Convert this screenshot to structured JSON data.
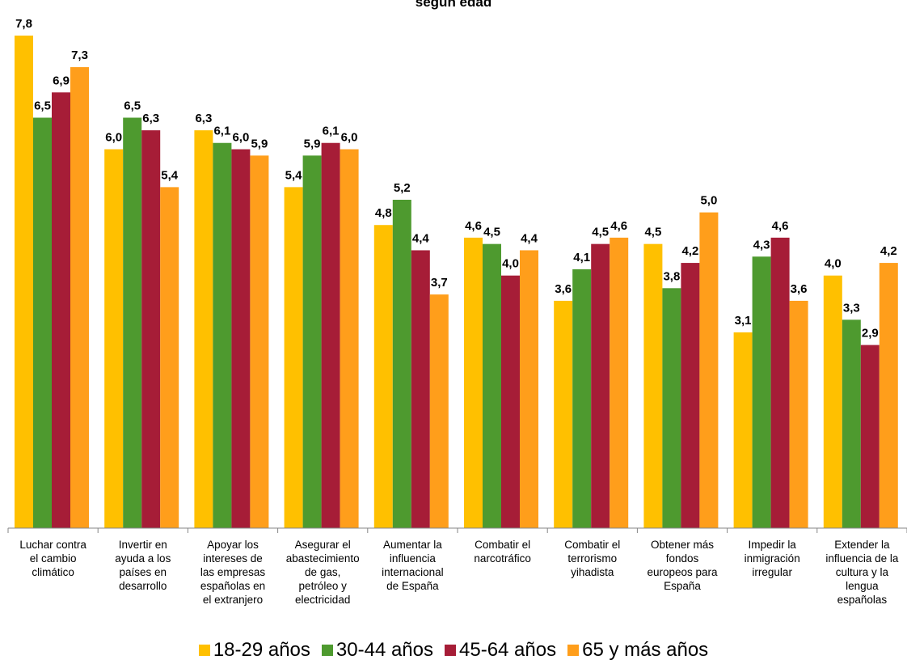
{
  "chart_data": {
    "type": "bar",
    "title": "según edad",
    "categories": [
      "Luchar contra el cambio climático",
      "Invertir en ayuda a los países en desarrollo",
      "Apoyar los intereses de las empresas españolas en el extranjero",
      "Asegurar el abastecimiento de gas, petróleo y electricidad",
      "Aumentar la influencia internacional de España",
      "Combatir el narcotráfico",
      "Combatir el terrorismo yihadista",
      "Obtener más fondos europeos para España",
      "Impedir la inmigración irregular",
      "Extender la influencia de la cultura y la lengua españolas"
    ],
    "category_lines": [
      [
        "Luchar contra",
        "el cambio",
        "climático"
      ],
      [
        "Invertir en",
        "ayuda a los",
        "países en",
        "desarrollo"
      ],
      [
        "Apoyar los",
        "intereses de",
        "las empresas",
        "españolas en",
        "el extranjero"
      ],
      [
        "Asegurar el",
        "abastecimiento",
        "de gas,",
        "petróleo y",
        "electricidad"
      ],
      [
        "Aumentar la",
        "influencia",
        "internacional",
        "de España"
      ],
      [
        "Combatir el",
        "narcotráfico"
      ],
      [
        "Combatir el",
        "terrorismo",
        "yihadista"
      ],
      [
        "Obtener más",
        "fondos",
        "europeos para",
        "España"
      ],
      [
        "Impedir la",
        "inmigración",
        "irregular"
      ],
      [
        "Extender la",
        "influencia de la",
        "cultura y la",
        "lengua",
        "españolas"
      ]
    ],
    "series": [
      {
        "name": "18-29 años",
        "color": "#FFC000",
        "values": [
          7.8,
          6.0,
          6.3,
          5.4,
          4.8,
          4.6,
          3.6,
          4.5,
          3.1,
          4.0
        ],
        "labels": [
          "7,8",
          "6,0",
          "6,3",
          "5,4",
          "4,8",
          "4,6",
          "3,6",
          "4,5",
          "3,1",
          "4,0"
        ]
      },
      {
        "name": "30-44 años",
        "color": "#4E9A2F",
        "values": [
          6.5,
          6.5,
          6.1,
          5.9,
          5.2,
          4.5,
          4.1,
          3.8,
          4.3,
          3.3
        ],
        "labels": [
          "6,5",
          "6,5",
          "6,1",
          "5,9",
          "5,2",
          "4,5",
          "4,1",
          "3,8",
          "4,3",
          "3,3"
        ]
      },
      {
        "name": "45-64 años",
        "color": "#A61D37",
        "values": [
          6.9,
          6.3,
          6.0,
          6.1,
          4.4,
          4.0,
          4.5,
          4.2,
          4.6,
          2.9
        ],
        "labels": [
          "6,9",
          "6,3",
          "6,0",
          "6,1",
          "4,4",
          "4,0",
          "4,5",
          "4,2",
          "4,6",
          "2,9"
        ]
      },
      {
        "name": "65 y más años",
        "color": "#FF9E1B",
        "values": [
          7.3,
          5.4,
          5.9,
          6.0,
          3.7,
          4.4,
          4.6,
          5.0,
          3.6,
          4.2
        ],
        "labels": [
          "7,3",
          "5,4",
          "5,9",
          "6,0",
          "3,7",
          "4,4",
          "4,6",
          "5,0",
          "3,6",
          "4,2"
        ]
      }
    ],
    "ylim": [
      0,
      7.8
    ],
    "grid": false,
    "legend_position": "bottom",
    "value_labels": true
  }
}
